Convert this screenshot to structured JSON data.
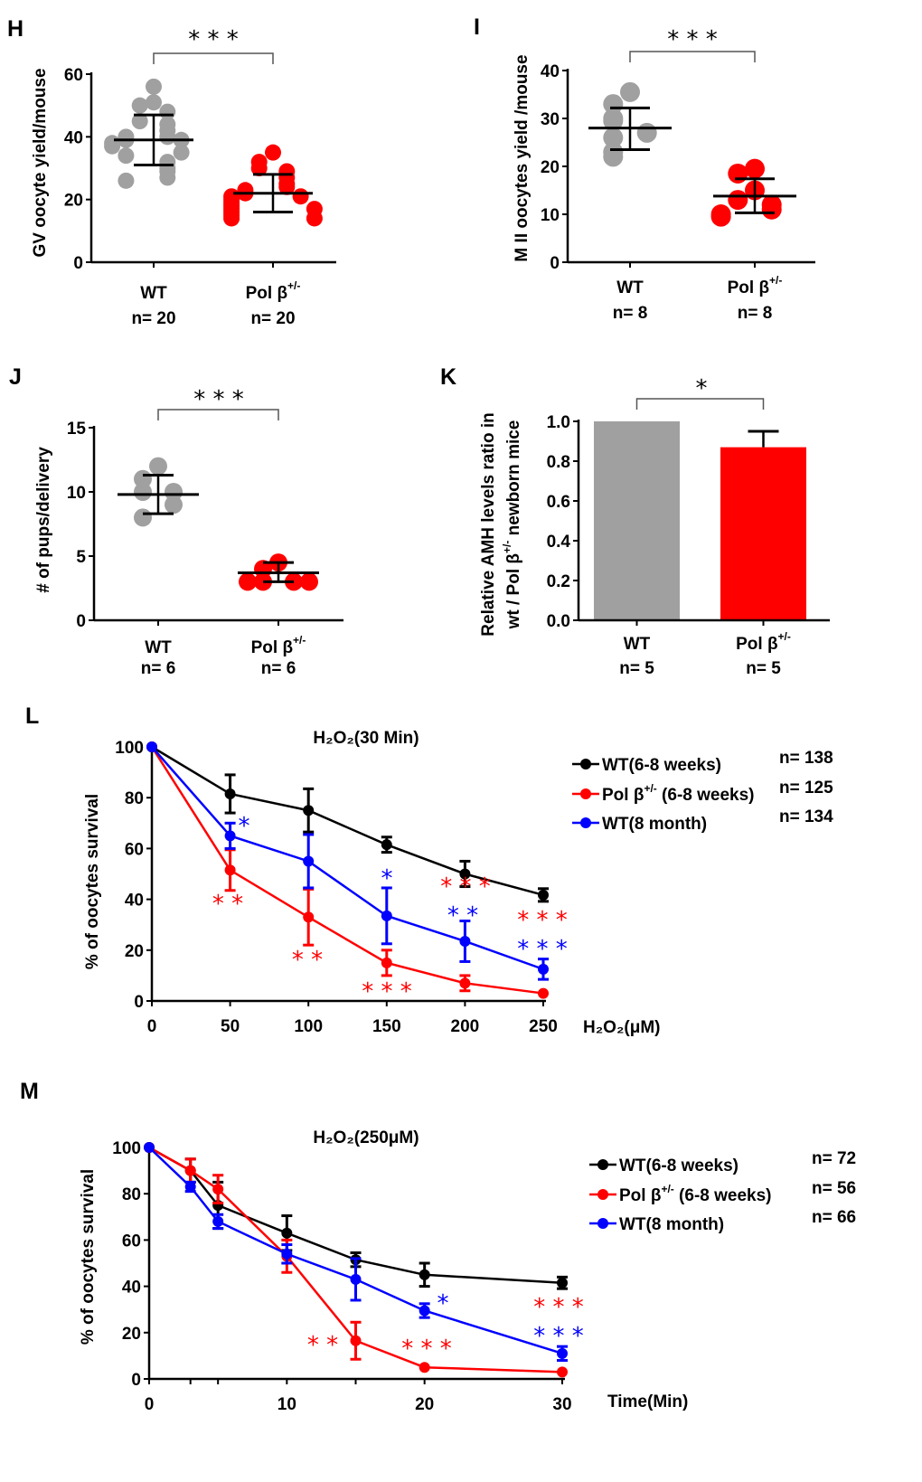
{
  "colors": {
    "wt": "#a0a0a0",
    "pol": "#ff0000",
    "wt_old": "#0000ff",
    "wt_line": "#000000",
    "bar_wt": "#a0a0a0",
    "bar_pol": "#ff0000"
  },
  "chart_data": [
    {
      "panel": "H",
      "type": "scatter",
      "ylabel": "GV oocyte yield/mouse",
      "ylim": [
        0,
        60
      ],
      "yticks": [
        "0",
        "20",
        "40",
        "60"
      ],
      "ytick_values": [
        0,
        20,
        40,
        60
      ],
      "categories": [
        {
          "label": "WT",
          "sup": "",
          "n": "n= 20"
        },
        {
          "label": "Pol β",
          "sup": "+/-",
          "n": "n= 20"
        }
      ],
      "series": [
        {
          "color": "#a0a0a0",
          "mean": 39,
          "sd_upper": 47,
          "sd_lower": 31,
          "values": [
            56,
            51,
            50,
            48,
            45,
            44,
            42,
            40,
            40,
            39,
            39,
            38,
            37,
            35,
            34,
            32,
            30,
            29,
            27,
            26
          ]
        },
        {
          "color": "#ff0000",
          "mean": 22,
          "sd_upper": 28,
          "sd_lower": 16,
          "values": [
            35,
            32,
            30,
            29,
            27,
            25,
            24,
            23,
            22,
            21,
            21,
            20,
            19,
            18,
            17,
            17,
            16,
            15,
            14,
            14
          ]
        }
      ],
      "significance": "* * *"
    },
    {
      "panel": "I",
      "type": "scatter",
      "ylabel": "M II oocytes yield /mouse",
      "ylim": [
        0,
        40
      ],
      "yticks": [
        "0",
        "10",
        "20",
        "30",
        "40"
      ],
      "ytick_values": [
        0,
        10,
        20,
        30,
        40
      ],
      "categories": [
        {
          "label": "WT",
          "sup": "",
          "n": "n= 8"
        },
        {
          "label": "Pol β",
          "sup": "+/-",
          "n": "n= 8"
        }
      ],
      "series": [
        {
          "color": "#a0a0a0",
          "mean": 28,
          "sd_upper": 32.2,
          "sd_lower": 23.5,
          "values": [
            35.5,
            33,
            30,
            29.5,
            27,
            26,
            23,
            22
          ]
        },
        {
          "color": "#ff0000",
          "mean": 13.8,
          "sd_upper": 17.4,
          "sd_lower": 10.3,
          "values": [
            19.5,
            18.5,
            15,
            13,
            12,
            11,
            10,
            9.5
          ]
        }
      ],
      "significance": "* * *"
    },
    {
      "panel": "J",
      "type": "scatter",
      "ylabel": "# of pups/delivery",
      "ylim": [
        0,
        15
      ],
      "yticks": [
        "0",
        "5",
        "10",
        "15"
      ],
      "ytick_values": [
        0,
        5,
        10,
        15
      ],
      "categories": [
        {
          "label": "WT",
          "sup": "",
          "n": "n= 6"
        },
        {
          "label": "Pol β",
          "sup": "+/-",
          "n": "n= 6"
        }
      ],
      "series": [
        {
          "color": "#a0a0a0",
          "mean": 9.8,
          "sd_upper": 11.3,
          "sd_lower": 8.3,
          "values": [
            12,
            11,
            10,
            10,
            9,
            8
          ]
        },
        {
          "color": "#ff0000",
          "mean": 3.7,
          "sd_upper": 4.5,
          "sd_lower": 3.0,
          "values": [
            4.5,
            4,
            3,
            3,
            3,
            3
          ]
        }
      ],
      "significance": "* * *"
    },
    {
      "panel": "K",
      "type": "bar",
      "ylabel": [
        "Relative AMH levels ratio in",
        "wt / Pol β",
        "+/-",
        " newborn mice"
      ],
      "ylim": [
        0,
        1.0
      ],
      "yticks": [
        "0.0",
        "0.2",
        "0.4",
        "0.6",
        "0.8",
        "1.0"
      ],
      "ytick_values": [
        0,
        0.2,
        0.4,
        0.6,
        0.8,
        1.0
      ],
      "categories": [
        {
          "label": "WT",
          "sup": "",
          "n": "n= 5"
        },
        {
          "label": "Pol β",
          "sup": "+/-",
          "n": "n= 5"
        }
      ],
      "values": [
        1.0,
        0.87
      ],
      "error_upper": [
        null,
        0.95
      ],
      "colors": [
        "#a0a0a0",
        "#ff0000"
      ],
      "significance": "*"
    },
    {
      "panel": "L",
      "type": "line",
      "title": "H₂O₂(30 Min)",
      "xlabel": "H₂O₂(μM)",
      "ylabel": "% of oocytes survival",
      "x": [
        0,
        50,
        100,
        150,
        200,
        250
      ],
      "xlim": [
        0,
        250
      ],
      "xticks": [
        "0",
        "50",
        "100",
        "150",
        "200",
        "250"
      ],
      "ylim": [
        0,
        100
      ],
      "yticks": [
        "0",
        "20",
        "40",
        "60",
        "80",
        "100"
      ],
      "ytick_values": [
        0,
        20,
        40,
        60,
        80,
        100
      ],
      "series": [
        {
          "name": "WT(6-8 weeks)",
          "sup": "",
          "name_suffix": "",
          "n": "n= 138",
          "color": "#000000",
          "values": [
            100,
            81.5,
            75,
            61.5,
            50,
            41.7
          ],
          "errors": [
            0,
            7.5,
            8.5,
            3,
            5,
            2.5
          ]
        },
        {
          "name": "Pol β",
          "sup": "+/-",
          "name_suffix": " (6-8 weeks)",
          "n": "n= 125",
          "color": "#ff0000",
          "values": [
            100,
            51.5,
            33,
            15,
            7,
            3
          ],
          "errors": [
            0,
            8,
            11,
            5,
            3,
            0
          ]
        },
        {
          "name": "WT(8 month)",
          "sup": "",
          "name_suffix": "",
          "n": "n= 134",
          "color": "#0000ff",
          "values": [
            100,
            65,
            55,
            33.5,
            23.5,
            12.5
          ],
          "errors": [
            0,
            5,
            10.5,
            11,
            8,
            4
          ]
        }
      ],
      "annotations": [
        {
          "x": 50,
          "text": "*",
          "color": "#0000ff"
        },
        {
          "x": 50,
          "text": "* *",
          "color": "#ff0000"
        },
        {
          "x": 100,
          "text": "* *",
          "color": "#ff0000"
        },
        {
          "x": 150,
          "text": "*",
          "color": "#0000ff"
        },
        {
          "x": 150,
          "text": "* * *",
          "color": "#ff0000"
        },
        {
          "x": 200,
          "text": "* * *",
          "color": "#ff0000"
        },
        {
          "x": 200,
          "text": "* *",
          "color": "#0000ff"
        },
        {
          "x": 250,
          "text": "* * *",
          "color": "#ff0000"
        },
        {
          "x": 250,
          "text": "* * *",
          "color": "#0000ff"
        }
      ],
      "legend": "right"
    },
    {
      "panel": "M",
      "type": "line",
      "title": "H₂O₂(250μM)",
      "xlabel": "Time(Min)",
      "ylabel": "% of oocytes survival",
      "x": [
        0,
        3,
        5,
        10,
        15,
        20,
        30
      ],
      "xlim": [
        0,
        30
      ],
      "xticks": [
        "0",
        "10",
        "20",
        "30"
      ],
      "xtick_values": [
        0,
        10,
        20,
        30
      ],
      "ylim": [
        0,
        100
      ],
      "yticks": [
        "0",
        "20",
        "40",
        "60",
        "80",
        "100"
      ],
      "ytick_values": [
        0,
        20,
        40,
        60,
        80,
        100
      ],
      "series": [
        {
          "name": "WT(6-8 weeks)",
          "sup": "",
          "name_suffix": "",
          "n": "n= 72",
          "color": "#000000",
          "values": [
            100,
            90,
            75,
            63,
            51.5,
            45,
            41.5
          ],
          "errors": [
            0,
            5,
            10,
            7.5,
            3,
            5,
            2.5
          ]
        },
        {
          "name": "Pol β",
          "sup": "+/-",
          "name_suffix": " (6-8 weeks)",
          "n": "n= 56",
          "color": "#ff0000",
          "values": [
            100,
            90,
            82,
            53,
            16.5,
            5,
            3
          ],
          "errors": [
            0,
            5,
            6,
            7,
            8,
            0,
            0
          ]
        },
        {
          "name": "WT(8 month)",
          "sup": "",
          "name_suffix": "",
          "n": "n= 66",
          "color": "#0000ff",
          "values": [
            100,
            83,
            68,
            54,
            43,
            29.5,
            11
          ],
          "errors": [
            0,
            2,
            3,
            4,
            9,
            3,
            3
          ]
        }
      ],
      "annotations": [
        {
          "x": 15,
          "text": "* *",
          "color": "#ff0000"
        },
        {
          "x": 20,
          "text": "* * *",
          "color": "#ff0000"
        },
        {
          "x": 20,
          "text": "*",
          "color": "#0000ff"
        },
        {
          "x": 30,
          "text": "* * *",
          "color": "#ff0000"
        },
        {
          "x": 30,
          "text": "* * *",
          "color": "#0000ff"
        }
      ],
      "legend": "right"
    }
  ]
}
